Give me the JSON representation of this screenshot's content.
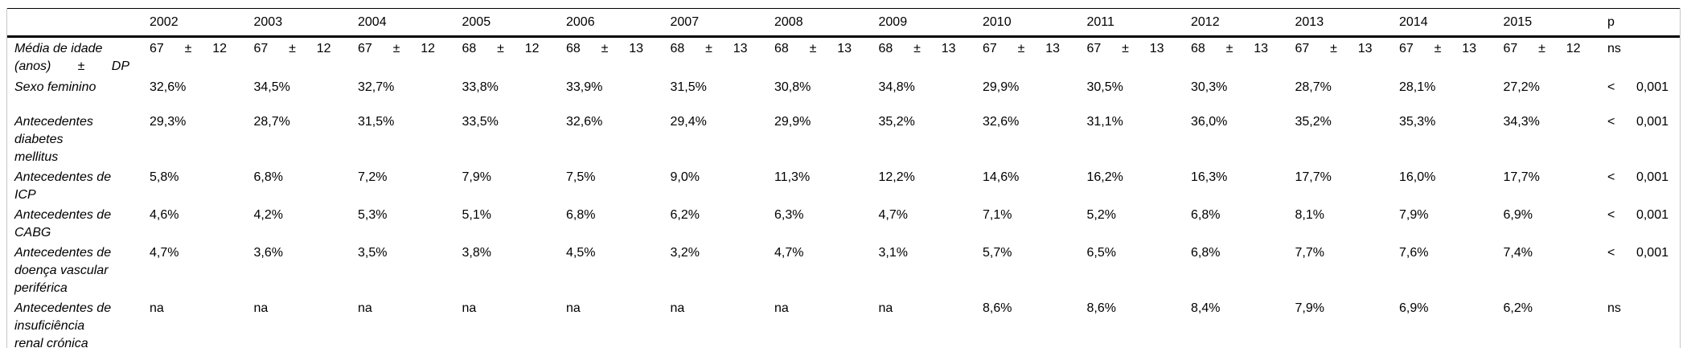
{
  "colors": {
    "background": "#ffffff",
    "text": "#000000",
    "rule": "#000000",
    "frame_border": "#c6c6c6"
  },
  "chart_data": {
    "type": "table",
    "corner_header": "",
    "columns": [
      "2002",
      "2003",
      "2004",
      "2005",
      "2006",
      "2007",
      "2008",
      "2009",
      "2010",
      "2011",
      "2012",
      "2013",
      "2014",
      "2015",
      "p"
    ],
    "rows": [
      {
        "label": "Média de idade (anos) ± DP",
        "label_lines": [
          "Média de idade",
          "(anos) ± DP"
        ],
        "values": [
          "67 ± 12",
          "67 ± 12",
          "67 ± 12",
          "68 ± 12",
          "68 ± 13",
          "68 ± 13",
          "68 ± 13",
          "68 ± 13",
          "67 ± 13",
          "67 ± 13",
          "68 ± 13",
          "67 ± 13",
          "67 ± 13",
          "67 ± 12",
          "ns"
        ]
      },
      {
        "label": "Sexo feminino",
        "label_lines": [
          "Sexo feminino"
        ],
        "values": [
          "32,6%",
          "34,5%",
          "32,7%",
          "33,8%",
          "33,9%",
          "31,5%",
          "30,8%",
          "34,8%",
          "29,9%",
          "30,5%",
          "30,3%",
          "28,7%",
          "28,1%",
          "27,2%",
          "< 0,001"
        ]
      },
      {
        "label": "Antecedentes diabetes mellitus",
        "label_lines": [
          "Antecedentes",
          "diabetes",
          "mellitus"
        ],
        "values": [
          "29,3%",
          "28,7%",
          "31,5%",
          "33,5%",
          "32,6%",
          "29,4%",
          "29,9%",
          "35,2%",
          "32,6%",
          "31,1%",
          "36,0%",
          "35,2%",
          "35,3%",
          "34,3%",
          "< 0,001"
        ]
      },
      {
        "label": "Antecedentes de ICP",
        "label_lines": [
          "Antecedentes de",
          "ICP"
        ],
        "values": [
          "5,8%",
          "6,8%",
          "7,2%",
          "7,9%",
          "7,5%",
          "9,0%",
          "11,3%",
          "12,2%",
          "14,6%",
          "16,2%",
          "16,3%",
          "17,7%",
          "16,0%",
          "17,7%",
          "< 0,001"
        ]
      },
      {
        "label": "Antecedentes de CABG",
        "label_lines": [
          "Antecedentes de",
          "CABG"
        ],
        "values": [
          "4,6%",
          "4,2%",
          "5,3%",
          "5,1%",
          "6,8%",
          "6,2%",
          "6,3%",
          "4,7%",
          "7,1%",
          "5,2%",
          "6,8%",
          "8,1%",
          "7,9%",
          "6,9%",
          "< 0,001"
        ]
      },
      {
        "label": "Antecedentes de doença vascular periférica",
        "label_lines": [
          "Antecedentes de",
          "doença vascular",
          "periférica"
        ],
        "values": [
          "4,7%",
          "3,6%",
          "3,5%",
          "3,8%",
          "4,5%",
          "3,2%",
          "4,7%",
          "3,1%",
          "5,7%",
          "6,5%",
          "6,8%",
          "7,7%",
          "7,6%",
          "7,4%",
          "< 0,001"
        ]
      },
      {
        "label": "Antecedentes de insuficiência renal crónica",
        "label_lines": [
          "Antecedentes de",
          "insuficiência",
          "renal crónica"
        ],
        "values": [
          "na",
          "na",
          "na",
          "na",
          "na",
          "na",
          "na",
          "na",
          "8,6%",
          "8,6%",
          "8,4%",
          "7,9%",
          "6,9%",
          "6,2%",
          "ns"
        ]
      }
    ]
  }
}
